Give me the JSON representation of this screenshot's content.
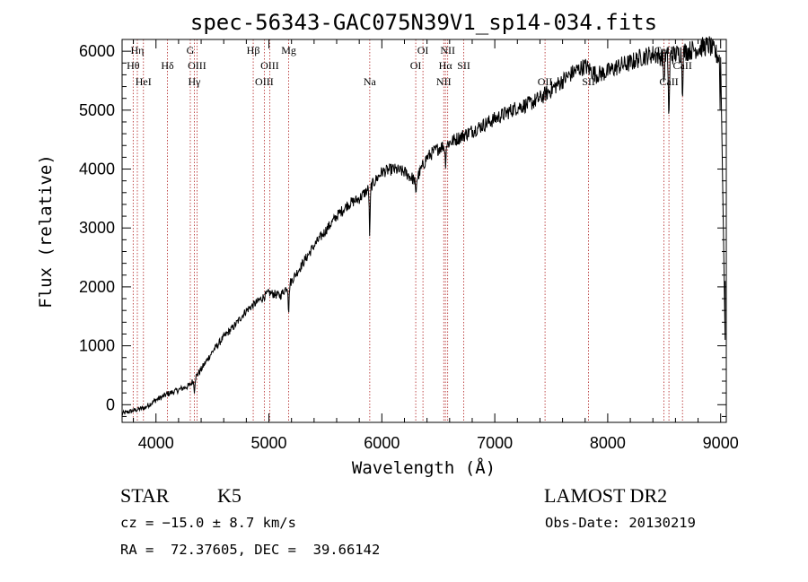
{
  "chart_data": {
    "type": "line",
    "title": "spec-56343-GAC075N39V1_sp14-034.fits",
    "xlabel": "Wavelength (Å)",
    "ylabel": "Flux (relative)",
    "xlim": [
      3700,
      9050
    ],
    "ylim": [
      -300,
      6200
    ],
    "xticks": [
      4000,
      5000,
      6000,
      7000,
      8000,
      9000
    ],
    "yticks": [
      0,
      1000,
      2000,
      3000,
      4000,
      5000,
      6000
    ],
    "grid": false,
    "series": [
      {
        "x": [
          3700,
          3800,
          3900,
          4000,
          4100,
          4200,
          4300,
          4400,
          4500,
          4600,
          4700,
          4800,
          4900,
          5000,
          5100,
          5200,
          5300,
          5400,
          5500,
          5600,
          5700,
          5800,
          5900,
          6000,
          6100,
          6200,
          6300,
          6400,
          6500,
          6600,
          6700,
          6800,
          6900,
          7000,
          7100,
          7200,
          7300,
          7400,
          7500,
          7600,
          7700,
          7800,
          7900,
          8000,
          8100,
          8200,
          8300,
          8400,
          8500,
          8600,
          8700,
          8800,
          8900,
          9000
        ],
        "y": [
          -150,
          -100,
          -50,
          80,
          180,
          250,
          330,
          600,
          900,
          1150,
          1350,
          1600,
          1750,
          1900,
          1850,
          2100,
          2400,
          2700,
          2950,
          3200,
          3400,
          3500,
          3700,
          3950,
          4000,
          3950,
          3800,
          4200,
          4350,
          4450,
          4550,
          4650,
          4750,
          4850,
          4950,
          5050,
          5100,
          5200,
          5350,
          5500,
          5650,
          5750,
          5600,
          5650,
          5750,
          5800,
          5900,
          5950,
          5900,
          5950,
          6000,
          6050,
          6100,
          5850
        ]
      }
    ],
    "absorption_features": [
      {
        "x": 4340,
        "depth": 200
      },
      {
        "x": 5175,
        "depth": 450
      },
      {
        "x": 5893,
        "depth": 800
      },
      {
        "x": 6300,
        "depth": 250
      },
      {
        "x": 6563,
        "depth": 300
      },
      {
        "x": 8498,
        "depth": 450
      },
      {
        "x": 8542,
        "depth": 1100
      },
      {
        "x": 8662,
        "depth": 650
      }
    ],
    "spectral_lines": [
      {
        "label": "Hη",
        "x": 3835,
        "row": 0
      },
      {
        "label": "Hθ",
        "x": 3798,
        "row": 1
      },
      {
        "label": "HeI",
        "x": 3889,
        "row": 2
      },
      {
        "label": "Hδ",
        "x": 4102,
        "row": 1
      },
      {
        "label": "G",
        "x": 4304,
        "row": 0
      },
      {
        "label": "OIII",
        "x": 4363,
        "row": 1
      },
      {
        "label": "Hγ",
        "x": 4340,
        "row": 2
      },
      {
        "label": "Hβ",
        "x": 4861,
        "row": 0
      },
      {
        "label": "OIII",
        "x": 5007,
        "row": 1
      },
      {
        "label": "OIII",
        "x": 4959,
        "row": 2
      },
      {
        "label": "Mg",
        "x": 5175,
        "row": 0
      },
      {
        "label": "Na",
        "x": 5893,
        "row": 2
      },
      {
        "label": "OI",
        "x": 6364,
        "row": 0
      },
      {
        "label": "OI",
        "x": 6300,
        "row": 1
      },
      {
        "label": "NII",
        "x": 6583,
        "row": 0
      },
      {
        "label": "Hα",
        "x": 6563,
        "row": 1
      },
      {
        "label": "SII",
        "x": 6725,
        "row": 1
      },
      {
        "label": "NII",
        "x": 6548,
        "row": 2
      },
      {
        "label": "OII",
        "x": 7445,
        "row": 2
      },
      {
        "label": "SII",
        "x": 7830,
        "row": 2
      },
      {
        "label": "CaII",
        "x": 8498,
        "row": 0
      },
      {
        "label": "CaII",
        "x": 8662,
        "row": 1
      },
      {
        "label": "CaII",
        "x": 8542,
        "row": 2
      }
    ],
    "colors": {
      "spectrum": "#000000",
      "line_marker": "#b02020",
      "axes": "#000000"
    }
  },
  "info": {
    "class": "STAR",
    "subclass": "K5",
    "survey": "LAMOST DR2",
    "cz": "cz = −15.0 ± 8.7 km/s",
    "obs_date": "Obs-Date: 20130219",
    "coords": "RA =  72.37605, DEC =  39.66142"
  }
}
